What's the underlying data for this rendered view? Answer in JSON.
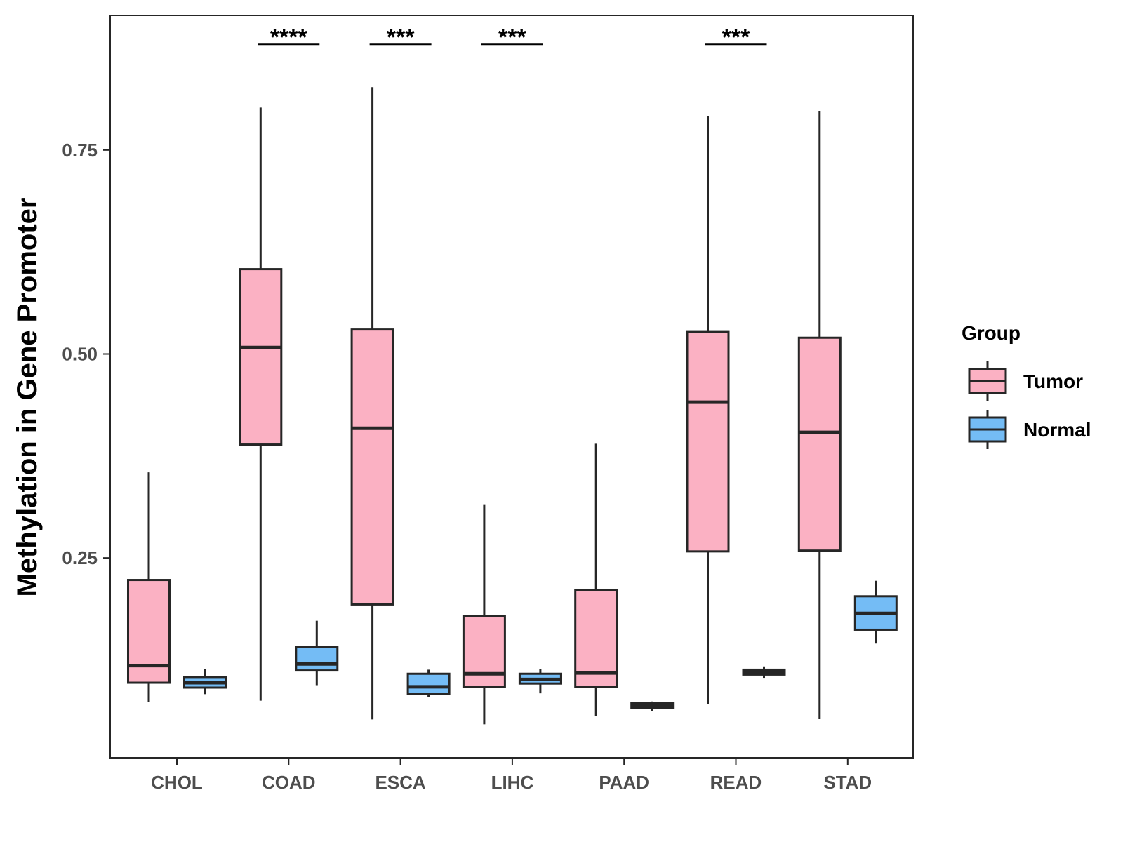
{
  "chart_data": {
    "type": "boxplot",
    "title": "",
    "xlabel": "",
    "ylabel": "Methylation in Gene Promoter",
    "ylim": [
      0.005,
      0.915
    ],
    "yticks": [
      0.25,
      0.5,
      0.75
    ],
    "ytick_labels": [
      "0.25",
      "0.50",
      "0.75"
    ],
    "grid": false,
    "legend": {
      "title": "Group",
      "placement": "right",
      "entries": [
        {
          "name": "Tumor",
          "color": "#FBB1C3"
        },
        {
          "name": "Normal",
          "color": "#74BCF5"
        }
      ]
    },
    "colors": {
      "tumor": "#FBB1C3",
      "normal": "#74BCF5",
      "line": "#262626",
      "panel_border": "#262626"
    },
    "categories": [
      "CHOL",
      "COAD",
      "ESCA",
      "LIHC",
      "PAAD",
      "READ",
      "STAD"
    ],
    "series": [
      {
        "name": "Tumor",
        "color": "#FBB1C3",
        "boxes": [
          {
            "category": "CHOL",
            "min": 0.073,
            "q1": 0.097,
            "median": 0.118,
            "q3": 0.223,
            "max": 0.355
          },
          {
            "category": "COAD",
            "min": 0.075,
            "q1": 0.389,
            "median": 0.508,
            "q3": 0.604,
            "max": 0.802
          },
          {
            "category": "ESCA",
            "min": 0.052,
            "q1": 0.193,
            "median": 0.409,
            "q3": 0.53,
            "max": 0.827
          },
          {
            "category": "LIHC",
            "min": 0.046,
            "q1": 0.092,
            "median": 0.108,
            "q3": 0.179,
            "max": 0.315
          },
          {
            "category": "PAAD",
            "min": 0.056,
            "q1": 0.092,
            "median": 0.109,
            "q3": 0.211,
            "max": 0.39
          },
          {
            "category": "READ",
            "min": 0.071,
            "q1": 0.258,
            "median": 0.441,
            "q3": 0.527,
            "max": 0.792
          },
          {
            "category": "STAD",
            "min": 0.053,
            "q1": 0.259,
            "median": 0.404,
            "q3": 0.52,
            "max": 0.798
          }
        ]
      },
      {
        "name": "Normal",
        "color": "#74BCF5",
        "boxes": [
          {
            "category": "CHOL",
            "min": 0.083,
            "q1": 0.091,
            "median": 0.097,
            "q3": 0.104,
            "max": 0.114
          },
          {
            "category": "COAD",
            "min": 0.094,
            "q1": 0.112,
            "median": 0.12,
            "q3": 0.141,
            "max": 0.173
          },
          {
            "category": "ESCA",
            "min": 0.079,
            "q1": 0.083,
            "median": 0.092,
            "q3": 0.108,
            "max": 0.113
          },
          {
            "category": "LIHC",
            "min": 0.084,
            "q1": 0.096,
            "median": 0.101,
            "q3": 0.108,
            "max": 0.114
          },
          {
            "category": "PAAD",
            "min": 0.062,
            "q1": 0.066,
            "median": 0.069,
            "q3": 0.072,
            "max": 0.074
          },
          {
            "category": "READ",
            "min": 0.103,
            "q1": 0.107,
            "median": 0.11,
            "q3": 0.113,
            "max": 0.117
          },
          {
            "category": "STAD",
            "min": 0.145,
            "q1": 0.162,
            "median": 0.182,
            "q3": 0.203,
            "max": 0.222
          }
        ]
      }
    ],
    "significance": [
      {
        "category": "COAD",
        "label": "****",
        "y": 0.88
      },
      {
        "category": "ESCA",
        "label": "***",
        "y": 0.88
      },
      {
        "category": "LIHC",
        "label": "***",
        "y": 0.88
      },
      {
        "category": "READ",
        "label": "***",
        "y": 0.88
      }
    ]
  }
}
